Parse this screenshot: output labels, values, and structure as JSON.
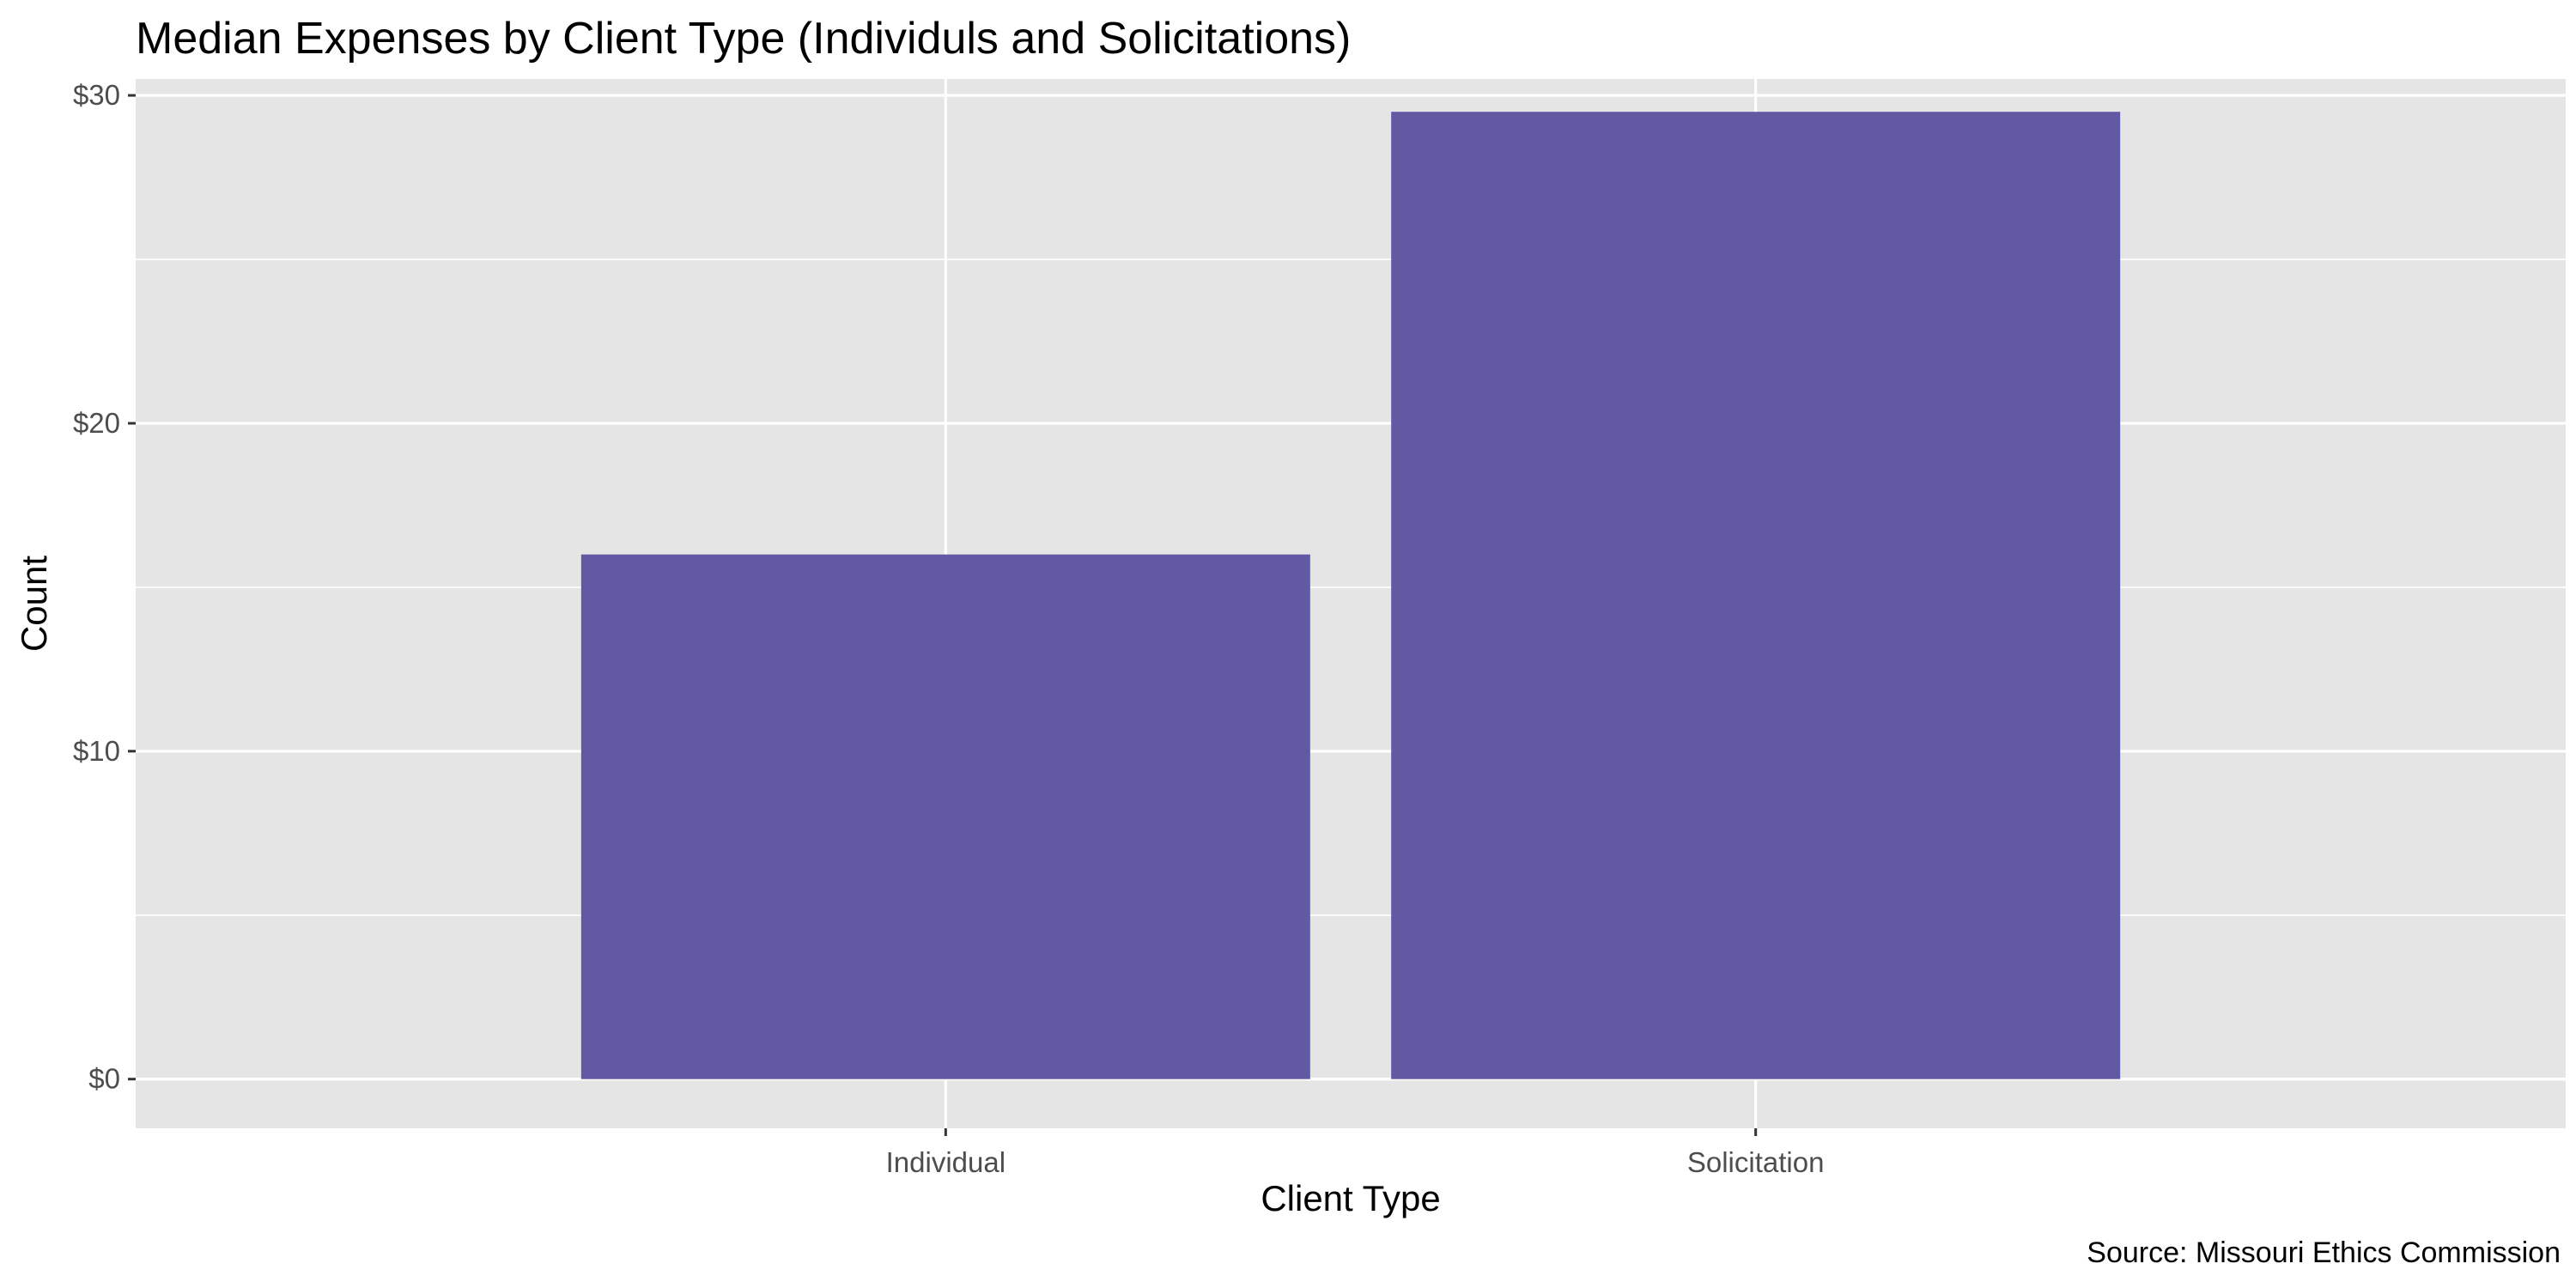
{
  "chart_data": {
    "type": "bar",
    "title": "Median Expenses by Client Type (Individuls and Solicitations)",
    "xlabel": "Client Type",
    "ylabel": "Count",
    "caption": "Source: Missouri Ethics Commission",
    "categories": [
      "Individual",
      "Solicitation"
    ],
    "values": [
      16,
      29.5
    ],
    "ylim": [
      -1.5,
      30.5
    ],
    "yticks": [
      0,
      10,
      20,
      30
    ],
    "ytick_labels": [
      "$0",
      "$10",
      "$20",
      "$30"
    ],
    "grid": true,
    "legend": "none",
    "colors": {
      "bar": "#6159a4",
      "panel": "#e5e5e5",
      "grid": "#ffffff",
      "tick_text": "#4d4d4d",
      "text": "#000000"
    }
  }
}
